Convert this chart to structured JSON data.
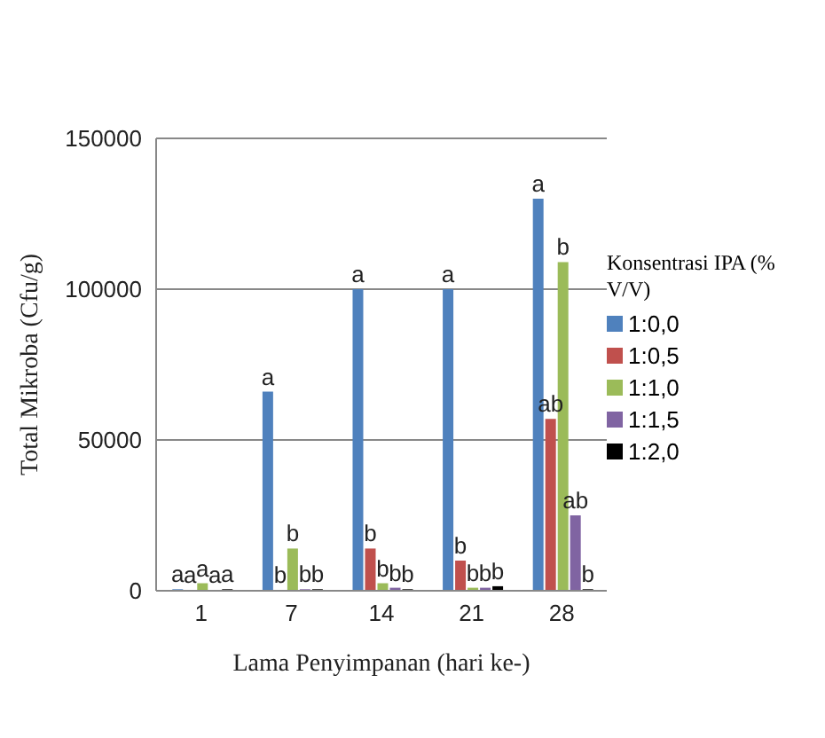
{
  "chart_data": {
    "type": "bar",
    "xlabel": "Lama Penyimpanan (hari ke-)",
    "ylabel": "Total Mikroba (Cfu/g)",
    "legend_title": "Konsentrasi IPA (% V/V)",
    "categories": [
      "1",
      "7",
      "14",
      "21",
      "28"
    ],
    "series": [
      {
        "name": "1:0,0",
        "color": "#4f81bd",
        "values": [
          500,
          66000,
          100000,
          100000,
          130000
        ],
        "value_labels": [
          "a",
          "a",
          "a",
          "a",
          "a"
        ]
      },
      {
        "name": "1:0,5",
        "color": "#c0504d",
        "values": [
          300,
          300,
          14000,
          10000,
          57000
        ],
        "value_labels": [
          "a",
          "b",
          "b",
          "b",
          "ab"
        ]
      },
      {
        "name": "1:1,0",
        "color": "#9bbb59",
        "values": [
          2500,
          14000,
          2500,
          1000,
          109000
        ],
        "value_labels": [
          "a",
          "b",
          "b",
          "b",
          "b"
        ]
      },
      {
        "name": "1:1,5",
        "color": "#8064a2",
        "values": [
          300,
          500,
          1000,
          1000,
          25000
        ],
        "value_labels": [
          "a",
          "b",
          "b",
          "b",
          "ab"
        ]
      },
      {
        "name": "1:2,0",
        "color": "#000000",
        "values": [
          500,
          500,
          500,
          1500,
          500
        ],
        "value_labels": [
          "a",
          "b",
          "b",
          "b",
          "b"
        ]
      }
    ],
    "ylim": [
      0,
      150000
    ],
    "yticks": [
      0,
      50000,
      100000,
      150000
    ],
    "grid": "y",
    "legend": "right"
  }
}
